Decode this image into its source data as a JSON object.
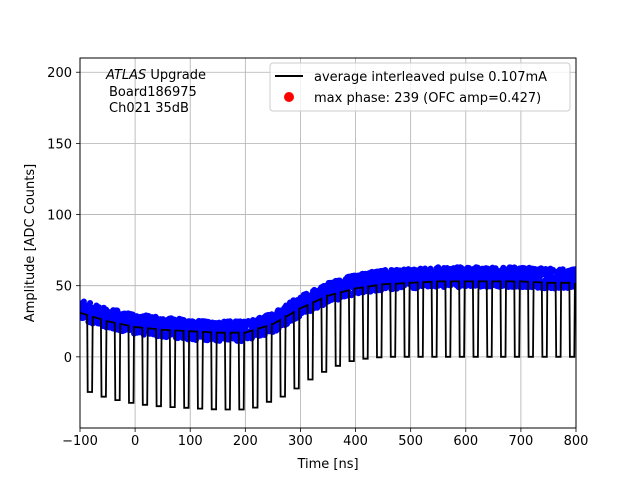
{
  "chart_data": {
    "type": "line",
    "xlabel": "Time [ns]",
    "ylabel": "Amplitude [ADC Counts]",
    "xlim": [
      -100,
      800
    ],
    "ylim": [
      -50,
      210
    ],
    "grid": true,
    "x_ticks": [
      -100,
      0,
      100,
      200,
      300,
      400,
      500,
      600,
      700,
      800
    ],
    "y_ticks": [
      0,
      50,
      100,
      150,
      200
    ],
    "x_tick_labels": [
      "−100",
      "0",
      "100",
      "200",
      "300",
      "400",
      "500",
      "600",
      "700",
      "800"
    ],
    "y_tick_labels": [
      "0",
      "50",
      "100",
      "150",
      "200"
    ],
    "annotation": {
      "line1_italic": "ATLAS",
      "line1_rest": " Upgrade",
      "line2": "Board186975",
      "line3": "Ch021 35dB"
    },
    "legend": {
      "placement": "top-right",
      "entries": [
        {
          "label": "average interleaved pulse 0.107mA",
          "marker": "line",
          "color": "#000000"
        },
        {
          "label": "max phase: 239 (OFC amp=0.427)",
          "marker": "dot",
          "color": "#ff0000"
        }
      ]
    },
    "series": [
      {
        "label_ref": "legend.entries.0",
        "color": "#000000",
        "pulse_period_ns": 25,
        "high_value_range": [
          17,
          53
        ],
        "low_value_range": [
          -37,
          0
        ],
        "high_envelope": [
          [
            -100,
            31
          ],
          [
            -50,
            25
          ],
          [
            0,
            21
          ],
          [
            50,
            19
          ],
          [
            100,
            18
          ],
          [
            150,
            17
          ],
          [
            200,
            17
          ],
          [
            250,
            23
          ],
          [
            300,
            34
          ],
          [
            350,
            43
          ],
          [
            400,
            48
          ],
          [
            450,
            51
          ],
          [
            500,
            52
          ],
          [
            550,
            53
          ],
          [
            600,
            53
          ],
          [
            650,
            53
          ],
          [
            700,
            53
          ],
          [
            750,
            52
          ],
          [
            800,
            52
          ]
        ],
        "low_envelope": [
          [
            -100,
            -22
          ],
          [
            -75,
            -26
          ],
          [
            -50,
            -29
          ],
          [
            0,
            -33
          ],
          [
            50,
            -35
          ],
          [
            100,
            -36
          ],
          [
            150,
            -37
          ],
          [
            200,
            -37
          ],
          [
            225,
            -35
          ],
          [
            250,
            -30
          ],
          [
            275,
            -27
          ],
          [
            300,
            -20
          ],
          [
            325,
            -14
          ],
          [
            350,
            -9
          ],
          [
            375,
            -5
          ],
          [
            400,
            -2
          ],
          [
            450,
            0
          ],
          [
            500,
            0
          ],
          [
            800,
            0
          ]
        ]
      },
      {
        "label_ref": "dense sampled points",
        "color": "#0000ff",
        "band_center": [
          [
            -100,
            33
          ],
          [
            -50,
            27
          ],
          [
            0,
            23
          ],
          [
            50,
            21
          ],
          [
            100,
            19
          ],
          [
            150,
            18
          ],
          [
            200,
            18
          ],
          [
            250,
            24
          ],
          [
            300,
            36
          ],
          [
            350,
            45
          ],
          [
            400,
            51
          ],
          [
            450,
            54
          ],
          [
            500,
            55
          ],
          [
            550,
            56
          ],
          [
            600,
            56
          ],
          [
            650,
            56
          ],
          [
            700,
            56
          ],
          [
            750,
            55
          ],
          [
            800,
            55
          ]
        ],
        "band_spread": 7
      }
    ]
  }
}
